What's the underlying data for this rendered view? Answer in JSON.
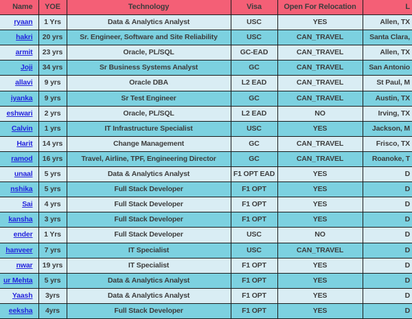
{
  "colors": {
    "header_bg": "#f45f76",
    "row_light": "#d9edf4",
    "row_dark": "#7cd1e0",
    "border": "#1b1b1b",
    "text": "#3d3d3d",
    "link": "#2424dd",
    "gutter": "#d4d4d4"
  },
  "table": {
    "columns": [
      {
        "key": "name",
        "label": "Name"
      },
      {
        "key": "yoe",
        "label": "YOE"
      },
      {
        "key": "technology",
        "label": "Technology"
      },
      {
        "key": "visa",
        "label": "Visa"
      },
      {
        "key": "relocation",
        "label": "Open For Relocation"
      },
      {
        "key": "location",
        "label": "L"
      }
    ],
    "rows": [
      {
        "name": "ryaan",
        "yoe": "1 Yrs",
        "technology": "Data & Analytics Analyst",
        "visa": "USC",
        "relocation": "YES",
        "location": "Allen, TX"
      },
      {
        "name": "hakri",
        "yoe": "20 yrs",
        "technology": "Sr. Engineer, Software and Site Reliability",
        "visa": "USC",
        "relocation": "CAN_TRAVEL",
        "location": "Santa Clara,"
      },
      {
        "name": "armit",
        "yoe": "23 yrs",
        "technology": "Oracle, PL/SQL",
        "visa": "GC-EAD",
        "relocation": "CAN_TRAVEL",
        "location": "Allen, TX"
      },
      {
        "name": "Joji",
        "yoe": "34 yrs",
        "technology": "Sr Business Systems Analyst",
        "visa": "GC",
        "relocation": "CAN_TRAVEL",
        "location": "San Antonio"
      },
      {
        "name": "allavi",
        "yoe": "9 yrs",
        "technology": "Oracle DBA",
        "visa": "L2 EAD",
        "relocation": "CAN_TRAVEL",
        "location": "St Paul, M"
      },
      {
        "name": "iyanka",
        "yoe": "9 yrs",
        "technology": "Sr Test Engineer",
        "visa": "GC",
        "relocation": "CAN_TRAVEL",
        "location": "Austin, TX"
      },
      {
        "name": "eshwari",
        "yoe": "2 yrs",
        "technology": "Oracle, PL/SQL",
        "visa": "L2 EAD",
        "relocation": "NO",
        "location": "Irving, TX"
      },
      {
        "name": "Calvin",
        "yoe": "1 yrs",
        "technology": "IT Infrastructure Specialist",
        "visa": "USC",
        "relocation": "YES",
        "location": "Jackson, M"
      },
      {
        "name": "Harit",
        "yoe": "14 yrs",
        "technology": "Change Management",
        "visa": "GC",
        "relocation": "CAN_TRAVEL",
        "location": "Frisco, TX"
      },
      {
        "name": "ramod",
        "yoe": "16 yrs",
        "technology": "Travel, Airline, TPF, Engineering Director",
        "visa": "GC",
        "relocation": "CAN_TRAVEL",
        "location": "Roanoke, T"
      },
      {
        "name": "unaal",
        "yoe": "5 yrs",
        "technology": "Data & Analytics Analyst",
        "visa": "F1 OPT EAD",
        "relocation": "YES",
        "location": "D"
      },
      {
        "name": "nshika",
        "yoe": "5 yrs",
        "technology": "Full Stack Developer",
        "visa": "F1 OPT",
        "relocation": "YES",
        "location": "D"
      },
      {
        "name": "Sai",
        "yoe": "4 yrs",
        "technology": "Full Stack Developer",
        "visa": "F1 OPT",
        "relocation": "YES",
        "location": "D"
      },
      {
        "name": "kansha",
        "yoe": "3 yrs",
        "technology": "Full Stack Developer",
        "visa": "F1 OPT",
        "relocation": "YES",
        "location": "D"
      },
      {
        "name": "ender",
        "yoe": "1 Yrs",
        "technology": "Full Stack Developer",
        "visa": "USC",
        "relocation": "NO",
        "location": "D"
      },
      {
        "name": "hanveer",
        "yoe": "7 yrs",
        "technology": "IT Specialist",
        "visa": "USC",
        "relocation": "CAN_TRAVEL",
        "location": "D"
      },
      {
        "name": "nwar",
        "yoe": "19 yrs",
        "technology": "IT Specialist",
        "visa": "F1 OPT",
        "relocation": "YES",
        "location": "D"
      },
      {
        "name": "ur Mehta",
        "yoe": "5 yrs",
        "technology": "Data & Analytics Analyst",
        "visa": "F1 OPT",
        "relocation": "YES",
        "location": "D"
      },
      {
        "name": "Yaash",
        "yoe": "3yrs",
        "technology": "Data & Analytics Analyst",
        "visa": "F1 OPT",
        "relocation": "YES",
        "location": "D"
      },
      {
        "name": "eeksha",
        "yoe": "4yrs",
        "technology": "Full Stack Developer",
        "visa": "F1 OPT",
        "relocation": "YES",
        "location": "D"
      }
    ]
  }
}
